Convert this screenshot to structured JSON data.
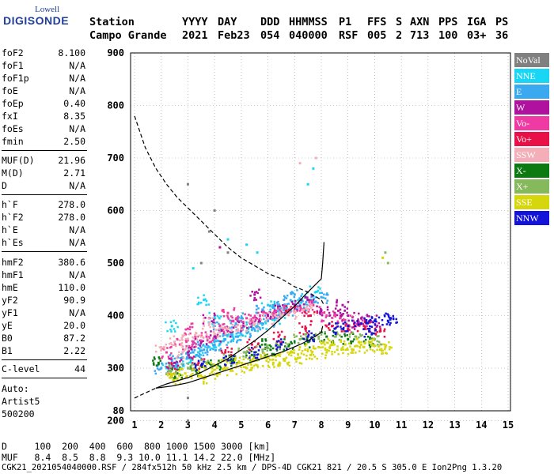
{
  "logo": {
    "line1": "Lowell",
    "line2": "DIGISONDE"
  },
  "header": {
    "row1": [
      "Station",
      "YYYY",
      "DAY",
      "DDD",
      "HHMMSS",
      "P1",
      "FFS",
      "S",
      "AXN",
      "PPS",
      "IGA",
      "PS"
    ],
    "row2": [
      "Campo Grande",
      "2021",
      "Feb23",
      "054",
      "040000",
      "RSF",
      "005",
      "2",
      "713",
      "100",
      "03+",
      "36"
    ]
  },
  "params": {
    "group1": [
      {
        "k": "foF2",
        "v": "8.100"
      },
      {
        "k": "foF1",
        "v": "N/A"
      },
      {
        "k": "foF1p",
        "v": "N/A"
      },
      {
        "k": "foE",
        "v": "N/A"
      },
      {
        "k": "foEp",
        "v": "0.40"
      },
      {
        "k": "fxI",
        "v": "8.35"
      },
      {
        "k": "foEs",
        "v": "N/A"
      },
      {
        "k": "fmin",
        "v": "2.50"
      }
    ],
    "group2": [
      {
        "k": "MUF(D)",
        "v": "21.96"
      },
      {
        "k": "M(D)",
        "v": "2.71"
      },
      {
        "k": "D",
        "v": "N/A"
      }
    ],
    "group3": [
      {
        "k": "h`F",
        "v": "278.0"
      },
      {
        "k": "h`F2",
        "v": "278.0"
      },
      {
        "k": "h`E",
        "v": "N/A"
      },
      {
        "k": "h`Es",
        "v": "N/A"
      }
    ],
    "group4": [
      {
        "k": "hmF2",
        "v": "380.6"
      },
      {
        "k": "hmF1",
        "v": "N/A"
      },
      {
        "k": "hmE",
        "v": "110.0"
      },
      {
        "k": "yF2",
        "v": "90.9"
      },
      {
        "k": "yF1",
        "v": "N/A"
      },
      {
        "k": "yE",
        "v": "20.0"
      },
      {
        "k": "B0",
        "v": "87.2"
      },
      {
        "k": "B1",
        "v": "2.22"
      }
    ],
    "group5": [
      {
        "k": "C-level",
        "v": "44"
      }
    ],
    "auto": [
      "Auto:",
      "Artist5",
      "500200"
    ]
  },
  "legend": [
    {
      "label": "NoVal",
      "color": "#808080"
    },
    {
      "label": "NNE",
      "color": "#19d6f5"
    },
    {
      "label": "E",
      "color": "#3ba9f0"
    },
    {
      "label": "W",
      "color": "#b0119e"
    },
    {
      "label": "Vo-",
      "color": "#ee3aa2"
    },
    {
      "label": "Vo+",
      "color": "#e81047"
    },
    {
      "label": "SSW",
      "color": "#f4aeb8"
    },
    {
      "label": "X-",
      "color": "#0c7a10"
    },
    {
      "label": "X+",
      "color": "#86b85c"
    },
    {
      "label": "SSE",
      "color": "#d6d60c"
    },
    {
      "label": "NNW",
      "color": "#1414d8"
    }
  ],
  "bottom": {
    "d_row": "D     100  200  400  600  800 1000 1500 3000 [km]",
    "muf_row": "MUF   8.4  8.5  8.8  9.3 10.0 11.1 14.2 22.0 [MHz]",
    "footer": "CGK21_2021054040000.RSF / 284fx512h 50 kHz 2.5 km / DPS-4D CGK21 821 / 20.5 S 305.0 E Ion2Png 1.3.20"
  },
  "chart_data": {
    "type": "scatter",
    "title": "",
    "xlabel": "",
    "ylabel": "",
    "xlim": [
      1,
      15
    ],
    "ylim": [
      80,
      900
    ],
    "x_ticks": [
      "1",
      "2",
      "3",
      "4",
      "5",
      "6",
      "7",
      "8",
      "9",
      "10",
      "11",
      "12",
      "13",
      "14",
      "15"
    ],
    "y_ticks": [
      "900",
      "800",
      "700",
      "600",
      "500",
      "400",
      "300",
      "200",
      "80"
    ],
    "grid": "dotted",
    "legend_placement": "right",
    "series": [
      {
        "name": "NNE",
        "color": "#19d6f5",
        "points": [
          [
            2.2,
            300
          ],
          [
            2.6,
            305
          ],
          [
            3.0,
            320
          ],
          [
            3.4,
            330
          ],
          [
            3.8,
            340
          ],
          [
            4.2,
            345
          ],
          [
            4.6,
            360
          ],
          [
            5.0,
            365
          ],
          [
            5.4,
            375
          ],
          [
            5.8,
            385
          ],
          [
            6.2,
            395
          ],
          [
            6.6,
            405
          ],
          [
            7.0,
            420
          ],
          [
            7.4,
            435
          ],
          [
            7.8,
            445
          ],
          [
            4.0,
            395
          ],
          [
            4.5,
            545
          ],
          [
            5.2,
            535
          ],
          [
            6.0,
            420
          ],
          [
            3.2,
            490
          ],
          [
            2.4,
            380
          ],
          [
            3.6,
            430
          ],
          [
            5.6,
            520
          ],
          [
            7.5,
            650
          ],
          [
            7.7,
            680
          ]
        ]
      },
      {
        "name": "E",
        "color": "#3ba9f0",
        "points": [
          [
            2.0,
            300
          ],
          [
            2.4,
            315
          ],
          [
            2.8,
            320
          ],
          [
            3.2,
            330
          ],
          [
            3.6,
            335
          ],
          [
            4.0,
            345
          ],
          [
            4.4,
            355
          ],
          [
            4.8,
            360
          ],
          [
            5.2,
            370
          ],
          [
            5.6,
            380
          ],
          [
            6.0,
            390
          ],
          [
            6.4,
            400
          ],
          [
            6.8,
            410
          ],
          [
            7.2,
            420
          ],
          [
            7.6,
            430
          ],
          [
            8.0,
            435
          ],
          [
            4.2,
            380
          ],
          [
            5.0,
            395
          ],
          [
            5.8,
            410
          ],
          [
            6.6,
            430
          ],
          [
            3.4,
            345
          ],
          [
            2.6,
            310
          ],
          [
            7.0,
            440
          ],
          [
            6.2,
            415
          ],
          [
            4.8,
            385
          ]
        ]
      },
      {
        "name": "W",
        "color": "#b0119e",
        "points": [
          [
            2.5,
            310
          ],
          [
            3.0,
            330
          ],
          [
            3.5,
            350
          ],
          [
            4.0,
            360
          ],
          [
            4.5,
            370
          ],
          [
            5.0,
            380
          ],
          [
            5.5,
            390
          ],
          [
            6.0,
            400
          ],
          [
            6.5,
            410
          ],
          [
            7.0,
            420
          ],
          [
            7.5,
            430
          ],
          [
            8.0,
            410
          ],
          [
            8.5,
            405
          ],
          [
            9.0,
            400
          ],
          [
            9.5,
            395
          ],
          [
            10.0,
            390
          ],
          [
            4.2,
            530
          ],
          [
            5.5,
            440
          ],
          [
            3.8,
            395
          ],
          [
            8.8,
            420
          ],
          [
            9.4,
            385
          ]
        ]
      },
      {
        "name": "Vo-",
        "color": "#ee3aa2",
        "points": [
          [
            2.2,
            330
          ],
          [
            2.7,
            345
          ],
          [
            3.2,
            350
          ],
          [
            3.7,
            360
          ],
          [
            4.2,
            380
          ],
          [
            4.7,
            390
          ],
          [
            5.2,
            395
          ],
          [
            5.7,
            400
          ],
          [
            6.2,
            405
          ],
          [
            6.7,
            410
          ],
          [
            7.2,
            415
          ],
          [
            7.7,
            420
          ],
          [
            8.2,
            400
          ],
          [
            8.7,
            395
          ],
          [
            9.2,
            390
          ],
          [
            9.7,
            380
          ],
          [
            3.0,
            375
          ],
          [
            4.5,
            405
          ]
        ]
      },
      {
        "name": "Vo+",
        "color": "#e81047",
        "points": [
          [
            2.4,
            300
          ],
          [
            3.4,
            310
          ],
          [
            4.4,
            330
          ],
          [
            5.4,
            345
          ],
          [
            6.4,
            360
          ],
          [
            7.4,
            375
          ],
          [
            8.4,
            380
          ],
          [
            9.0,
            375
          ],
          [
            9.6,
            380
          ],
          [
            10.2,
            370
          ],
          [
            6.8,
            410
          ],
          [
            7.6,
            400
          ]
        ]
      },
      {
        "name": "SSW",
        "color": "#f4aeb8",
        "points": [
          [
            2.0,
            340
          ],
          [
            2.5,
            350
          ],
          [
            3.0,
            355
          ],
          [
            3.5,
            360
          ],
          [
            4.0,
            365
          ],
          [
            4.5,
            375
          ],
          [
            5.0,
            380
          ],
          [
            5.5,
            385
          ],
          [
            6.0,
            395
          ],
          [
            6.5,
            400
          ],
          [
            7.0,
            405
          ],
          [
            7.5,
            410
          ],
          [
            2.8,
            330
          ],
          [
            3.8,
            385
          ],
          [
            7.2,
            690
          ],
          [
            7.8,
            700
          ]
        ]
      },
      {
        "name": "X-",
        "color": "#0c7a10",
        "points": [
          [
            2.6,
            290
          ],
          [
            3.3,
            295
          ],
          [
            4.0,
            305
          ],
          [
            4.7,
            315
          ],
          [
            5.4,
            325
          ],
          [
            6.1,
            335
          ],
          [
            6.8,
            345
          ],
          [
            7.5,
            350
          ],
          [
            8.2,
            360
          ],
          [
            9.0,
            355
          ],
          [
            9.8,
            350
          ],
          [
            1.9,
            310
          ],
          [
            5.9,
            345
          ]
        ]
      },
      {
        "name": "X+",
        "color": "#86b85c",
        "points": [
          [
            2.3,
            295
          ],
          [
            3.0,
            300
          ],
          [
            3.7,
            310
          ],
          [
            4.4,
            320
          ],
          [
            5.1,
            330
          ],
          [
            5.8,
            335
          ],
          [
            6.5,
            345
          ],
          [
            7.2,
            355
          ],
          [
            7.9,
            360
          ],
          [
            8.6,
            365
          ],
          [
            9.3,
            360
          ],
          [
            10.0,
            355
          ],
          [
            10.4,
            520
          ],
          [
            10.5,
            500
          ]
        ]
      },
      {
        "name": "SSE",
        "color": "#d6d60c",
        "points": [
          [
            2.4,
            285
          ],
          [
            2.9,
            290
          ],
          [
            3.4,
            295
          ],
          [
            3.9,
            300
          ],
          [
            4.4,
            305
          ],
          [
            4.9,
            310
          ],
          [
            5.4,
            315
          ],
          [
            5.9,
            320
          ],
          [
            6.4,
            325
          ],
          [
            6.9,
            330
          ],
          [
            7.4,
            335
          ],
          [
            7.9,
            340
          ],
          [
            8.4,
            345
          ],
          [
            8.9,
            345
          ],
          [
            9.4,
            350
          ],
          [
            9.9,
            345
          ],
          [
            10.4,
            340
          ],
          [
            3.6,
            280
          ],
          [
            4.6,
            295
          ],
          [
            5.6,
            305
          ],
          [
            6.6,
            315
          ],
          [
            7.6,
            325
          ],
          [
            8.6,
            335
          ],
          [
            9.6,
            340
          ],
          [
            5.2,
            300
          ],
          [
            6.2,
            310
          ],
          [
            7.2,
            320
          ],
          [
            8.2,
            330
          ],
          [
            9.2,
            335
          ],
          [
            10.2,
            335
          ],
          [
            2.6,
            280
          ],
          [
            4.1,
            290
          ],
          [
            10.3,
            510
          ]
        ]
      },
      {
        "name": "NNW",
        "color": "#1414d8",
        "points": [
          [
            3.5,
            305
          ],
          [
            4.5,
            315
          ],
          [
            5.5,
            330
          ],
          [
            6.5,
            345
          ],
          [
            7.5,
            360
          ],
          [
            8.5,
            375
          ],
          [
            9.0,
            380
          ],
          [
            9.5,
            385
          ],
          [
            10.0,
            390
          ],
          [
            10.5,
            390
          ],
          [
            9.8,
            370
          ],
          [
            10.6,
            395
          ]
        ]
      },
      {
        "name": "NoVal",
        "color": "#808080",
        "points": [
          [
            3.0,
            650
          ],
          [
            3.5,
            500
          ],
          [
            4.0,
            600
          ],
          [
            4.5,
            520
          ],
          [
            3.0,
            200
          ],
          [
            3.0,
            110
          ],
          [
            3.8,
            560
          ]
        ]
      }
    ],
    "curves": [
      {
        "name": "dashed",
        "style": "dashed",
        "points": [
          [
            1.0,
            780
          ],
          [
            1.4,
            720
          ],
          [
            1.8,
            680
          ],
          [
            2.2,
            650
          ],
          [
            2.6,
            625
          ],
          [
            3.0,
            605
          ],
          [
            3.5,
            580
          ],
          [
            4.0,
            555
          ],
          [
            4.5,
            530
          ],
          [
            5.0,
            510
          ],
          [
            5.5,
            495
          ],
          [
            6.0,
            480
          ],
          [
            6.5,
            470
          ],
          [
            7.0,
            455
          ],
          [
            7.5,
            445
          ],
          [
            8.0,
            430
          ],
          [
            8.1,
            420
          ]
        ]
      },
      {
        "name": "dashed-low",
        "style": "dashed",
        "points": [
          [
            1.0,
            243
          ],
          [
            1.2,
            248
          ],
          [
            1.5,
            255
          ],
          [
            1.8,
            262
          ]
        ]
      },
      {
        "name": "profile",
        "style": "solid",
        "points": [
          [
            1.8,
            262
          ],
          [
            2.2,
            270
          ],
          [
            2.6,
            276
          ],
          [
            3.0,
            282
          ],
          [
            3.5,
            292
          ],
          [
            4.0,
            305
          ],
          [
            4.5,
            318
          ],
          [
            5.0,
            335
          ],
          [
            5.5,
            352
          ],
          [
            6.0,
            372
          ],
          [
            6.5,
            395
          ],
          [
            7.0,
            418
          ],
          [
            7.4,
            440
          ],
          [
            7.8,
            460
          ],
          [
            8.0,
            470
          ],
          [
            8.05,
            500
          ],
          [
            8.1,
            540
          ]
        ]
      },
      {
        "name": "trace",
        "style": "solid",
        "points": [
          [
            1.8,
            262
          ],
          [
            2.4,
            266
          ],
          [
            3.0,
            272
          ],
          [
            3.6,
            282
          ],
          [
            4.2,
            292
          ],
          [
            4.8,
            302
          ],
          [
            5.4,
            312
          ],
          [
            6.0,
            322
          ],
          [
            6.6,
            332
          ],
          [
            7.2,
            345
          ],
          [
            7.6,
            355
          ],
          [
            8.0,
            368
          ],
          [
            8.05,
            380
          ]
        ]
      }
    ]
  }
}
